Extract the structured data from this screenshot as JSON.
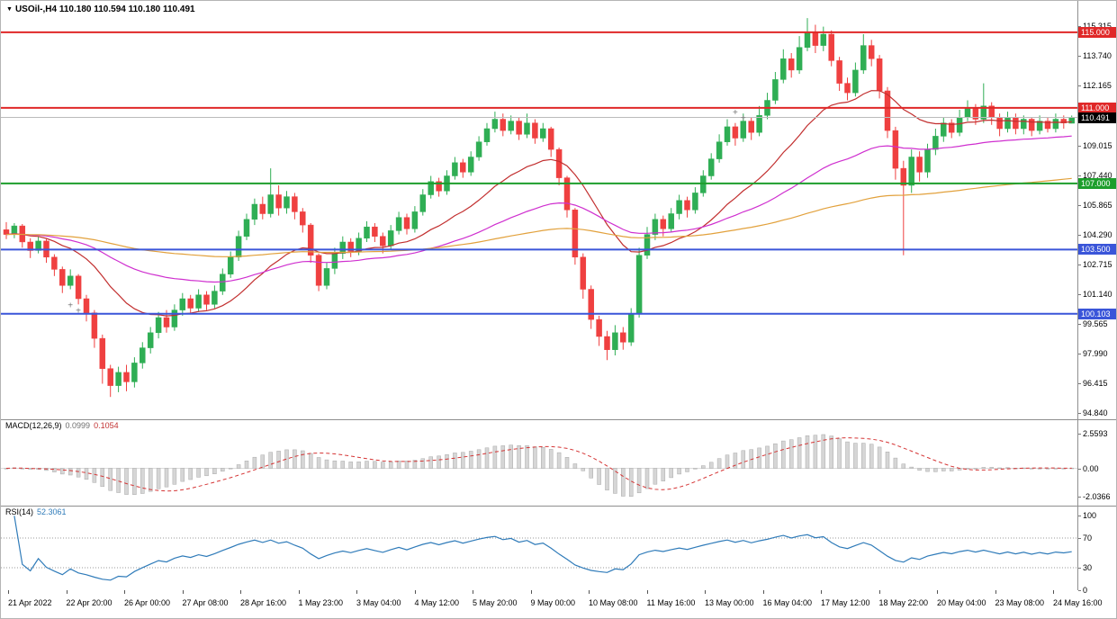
{
  "window": {
    "bg": "#ffffff",
    "border": "#b5b5b5"
  },
  "title": {
    "expander_icon": "▼",
    "symbol_period": "USOil-,H4",
    "ohlc": "110.180 110.594 110.180 110.491"
  },
  "colors": {
    "up": "#2fae54",
    "down": "#ef4040",
    "current_price_line": "#bbbbbb",
    "separator": "#8f8f8f",
    "axis_text": "#000000",
    "histogram": "#d6d6d6",
    "histogram_stroke": "#a8a8a8",
    "signal": "#d53535",
    "rsi_line": "#2f7bb9",
    "rsi_level_dotted": "#9a9a9a",
    "macd_zero_line": "#dcdcdc",
    "marker": "#777777"
  },
  "chart_data": {
    "type": "candlestick",
    "symbol": "USOil-",
    "timeframe": "H4",
    "bars_order": "oldest_to_newest",
    "ohlc_order": "[open,high,low,close]",
    "candles": [
      [
        104.55,
        104.95,
        104.05,
        104.3
      ],
      [
        104.3,
        104.9,
        104.1,
        104.75
      ],
      [
        104.75,
        104.85,
        103.6,
        103.9
      ],
      [
        103.9,
        104.1,
        103.05,
        103.45
      ],
      [
        103.45,
        104.2,
        103.3,
        103.95
      ],
      [
        103.95,
        104.05,
        102.8,
        103.1
      ],
      [
        103.1,
        103.25,
        102.1,
        102.45
      ],
      [
        102.45,
        102.6,
        101.2,
        101.6
      ],
      [
        101.6,
        102.45,
        101.4,
        102.1
      ],
      [
        102.1,
        102.2,
        100.6,
        100.9
      ],
      [
        100.9,
        101.1,
        99.7,
        100.15
      ],
      [
        100.15,
        100.3,
        98.3,
        98.8
      ],
      [
        98.8,
        99.0,
        96.4,
        97.2
      ],
      [
        97.2,
        97.4,
        95.7,
        96.3
      ],
      [
        96.3,
        97.3,
        95.95,
        97.0
      ],
      [
        97.0,
        97.4,
        96.0,
        96.5
      ],
      [
        96.5,
        97.8,
        96.2,
        97.5
      ],
      [
        97.5,
        98.6,
        97.2,
        98.3
      ],
      [
        98.3,
        99.4,
        98.0,
        99.1
      ],
      [
        99.1,
        100.2,
        98.8,
        99.9
      ],
      [
        99.9,
        100.3,
        99.1,
        99.4
      ],
      [
        99.4,
        100.6,
        99.2,
        100.3
      ],
      [
        100.3,
        101.2,
        100.0,
        100.9
      ],
      [
        100.9,
        101.1,
        100.1,
        100.4
      ],
      [
        100.4,
        101.4,
        100.2,
        101.1
      ],
      [
        101.1,
        101.3,
        100.3,
        100.6
      ],
      [
        100.6,
        101.6,
        100.4,
        101.3
      ],
      [
        101.3,
        102.5,
        101.1,
        102.2
      ],
      [
        102.2,
        103.4,
        102.0,
        103.1
      ],
      [
        103.1,
        104.5,
        102.9,
        104.2
      ],
      [
        104.2,
        105.4,
        104.0,
        105.1
      ],
      [
        105.1,
        106.2,
        104.8,
        105.9
      ],
      [
        105.9,
        106.3,
        105.1,
        105.4
      ],
      [
        105.4,
        107.8,
        105.2,
        106.4
      ],
      [
        106.4,
        106.9,
        105.3,
        105.7
      ],
      [
        105.7,
        106.6,
        105.4,
        106.3
      ],
      [
        106.3,
        106.5,
        105.1,
        105.5
      ],
      [
        105.5,
        105.7,
        104.4,
        104.8
      ],
      [
        104.8,
        104.9,
        102.8,
        103.2
      ],
      [
        103.2,
        103.3,
        101.3,
        101.6
      ],
      [
        101.6,
        102.8,
        101.4,
        102.5
      ],
      [
        102.5,
        103.6,
        102.2,
        103.3
      ],
      [
        103.3,
        104.2,
        103.0,
        103.9
      ],
      [
        103.9,
        104.1,
        103.1,
        103.4
      ],
      [
        103.4,
        104.4,
        103.2,
        104.1
      ],
      [
        104.1,
        105.0,
        103.9,
        104.7
      ],
      [
        104.7,
        104.9,
        103.9,
        104.2
      ],
      [
        104.2,
        104.4,
        103.3,
        103.7
      ],
      [
        103.7,
        104.8,
        103.5,
        104.5
      ],
      [
        104.5,
        105.5,
        104.3,
        105.2
      ],
      [
        105.2,
        105.4,
        104.3,
        104.6
      ],
      [
        104.6,
        105.8,
        104.4,
        105.5
      ],
      [
        105.5,
        106.7,
        105.3,
        106.4
      ],
      [
        106.4,
        107.4,
        106.2,
        107.1
      ],
      [
        107.1,
        107.3,
        106.3,
        106.6
      ],
      [
        106.6,
        107.7,
        106.4,
        107.4
      ],
      [
        107.4,
        108.4,
        107.2,
        108.1
      ],
      [
        108.1,
        108.3,
        107.3,
        107.6
      ],
      [
        107.6,
        108.7,
        107.4,
        108.4
      ],
      [
        108.4,
        109.5,
        108.2,
        109.2
      ],
      [
        109.2,
        110.2,
        109.0,
        109.9
      ],
      [
        109.9,
        110.8,
        109.7,
        110.4
      ],
      [
        110.4,
        110.7,
        109.5,
        109.8
      ],
      [
        109.8,
        110.6,
        109.6,
        110.3
      ],
      [
        110.3,
        110.5,
        109.3,
        109.6
      ],
      [
        109.6,
        110.7,
        109.4,
        110.2
      ],
      [
        110.2,
        110.4,
        109.1,
        109.4
      ],
      [
        109.4,
        110.2,
        109.2,
        109.9
      ],
      [
        109.9,
        110.0,
        108.4,
        108.8
      ],
      [
        108.8,
        108.9,
        106.9,
        107.3
      ],
      [
        107.3,
        107.4,
        105.2,
        105.6
      ],
      [
        105.6,
        105.7,
        102.7,
        103.1
      ],
      [
        103.1,
        103.3,
        100.9,
        101.4
      ],
      [
        101.4,
        101.6,
        99.3,
        99.8
      ],
      [
        99.8,
        100.0,
        98.4,
        98.9
      ],
      [
        98.9,
        99.2,
        97.65,
        98.2
      ],
      [
        98.2,
        99.5,
        97.9,
        99.1
      ],
      [
        99.1,
        99.4,
        98.2,
        98.6
      ],
      [
        98.6,
        100.4,
        98.4,
        100.1
      ],
      [
        100.1,
        103.6,
        99.9,
        103.2
      ],
      [
        103.2,
        104.7,
        103.0,
        104.3
      ],
      [
        104.3,
        105.4,
        104.0,
        105.1
      ],
      [
        105.1,
        105.3,
        104.2,
        104.6
      ],
      [
        104.6,
        105.7,
        104.4,
        105.4
      ],
      [
        105.4,
        106.4,
        105.1,
        106.1
      ],
      [
        106.1,
        106.3,
        105.2,
        105.6
      ],
      [
        105.6,
        106.8,
        105.4,
        106.5
      ],
      [
        106.5,
        107.7,
        106.3,
        107.4
      ],
      [
        107.4,
        108.6,
        107.2,
        108.3
      ],
      [
        108.3,
        109.6,
        108.1,
        109.2
      ],
      [
        109.2,
        110.4,
        109.0,
        110.0
      ],
      [
        110.0,
        110.2,
        109.0,
        109.4
      ],
      [
        109.4,
        110.7,
        109.2,
        110.3
      ],
      [
        110.3,
        110.5,
        109.3,
        109.7
      ],
      [
        109.7,
        111.1,
        109.5,
        110.6
      ],
      [
        110.6,
        111.8,
        110.4,
        111.4
      ],
      [
        111.4,
        112.9,
        111.2,
        112.5
      ],
      [
        112.5,
        114.1,
        112.3,
        113.6
      ],
      [
        113.6,
        113.9,
        112.6,
        113.0
      ],
      [
        113.0,
        114.8,
        112.8,
        114.2
      ],
      [
        114.2,
        115.75,
        114.0,
        115.0
      ],
      [
        115.0,
        115.4,
        113.9,
        114.3
      ],
      [
        114.3,
        115.3,
        114.0,
        114.9
      ],
      [
        114.9,
        115.1,
        113.2,
        113.5
      ],
      [
        113.5,
        113.7,
        111.9,
        112.3
      ],
      [
        112.3,
        112.6,
        111.4,
        111.8
      ],
      [
        111.8,
        113.4,
        111.6,
        113.0
      ],
      [
        113.0,
        114.9,
        112.8,
        114.3
      ],
      [
        114.3,
        114.6,
        113.2,
        113.6
      ],
      [
        113.6,
        113.8,
        111.5,
        111.9
      ],
      [
        111.9,
        112.1,
        109.4,
        109.8
      ],
      [
        109.8,
        110.0,
        107.2,
        107.8
      ],
      [
        107.8,
        108.2,
        103.2,
        106.9
      ],
      [
        106.9,
        108.8,
        106.5,
        108.4
      ],
      [
        108.4,
        108.7,
        107.1,
        107.6
      ],
      [
        107.6,
        109.1,
        107.3,
        108.8
      ],
      [
        108.8,
        109.9,
        108.5,
        109.5
      ],
      [
        109.5,
        110.5,
        109.2,
        110.2
      ],
      [
        110.2,
        110.4,
        109.4,
        109.7
      ],
      [
        109.7,
        110.9,
        109.5,
        110.5
      ],
      [
        110.5,
        111.4,
        110.3,
        111.0
      ],
      [
        111.0,
        111.2,
        110.1,
        110.4
      ],
      [
        110.4,
        112.3,
        110.2,
        111.1
      ],
      [
        111.1,
        111.3,
        110.1,
        110.5
      ],
      [
        110.5,
        110.7,
        109.5,
        109.9
      ],
      [
        109.9,
        110.8,
        109.7,
        110.5
      ],
      [
        110.5,
        110.7,
        109.6,
        109.9
      ],
      [
        109.9,
        110.6,
        109.6,
        110.4
      ],
      [
        110.4,
        110.5,
        109.5,
        109.8
      ],
      [
        109.8,
        110.6,
        109.6,
        110.3
      ],
      [
        110.3,
        110.5,
        109.7,
        109.9
      ],
      [
        109.9,
        110.7,
        109.7,
        110.4
      ],
      [
        110.4,
        110.6,
        109.9,
        110.2
      ],
      [
        110.18,
        110.594,
        110.18,
        110.491
      ]
    ],
    "levels": [
      {
        "value": 115.0,
        "label": "115.000",
        "color": "#e02828"
      },
      {
        "value": 111.0,
        "label": "111.000",
        "color": "#e02828"
      },
      {
        "value": 107.0,
        "label": "107.000",
        "color": "#1d9e2c"
      },
      {
        "value": 103.5,
        "label": "103.500",
        "color": "#3a55d9"
      },
      {
        "value": 100.103,
        "label": "100.103",
        "color": "#3a55d9"
      }
    ],
    "current_price": {
      "value": 110.491,
      "label": "110.491",
      "badge_bg": "#000000"
    },
    "moving_averages": [
      {
        "name": "ma-fast",
        "method": "ema",
        "period": 20,
        "color": "#c22f2f"
      },
      {
        "name": "ma-mid",
        "method": "ema",
        "period": 55,
        "color": "#cf2fcf"
      },
      {
        "name": "ma-slow",
        "method": "ema",
        "period": 150,
        "color": "#e2a13c"
      }
    ],
    "price_axis": {
      "labels": [
        "115.315",
        "113.740",
        "112.165",
        "110.590",
        "109.015",
        "107.440",
        "105.865",
        "104.290",
        "102.715",
        "101.140",
        "99.565",
        "97.990",
        "96.415",
        "94.840"
      ],
      "visible_min": 94.84,
      "visible_max": 116.66
    },
    "indicators": [
      {
        "name": "MACD",
        "label": "MACD(12,26,9)",
        "params": [
          12,
          26,
          9
        ],
        "values": [
          "0.0999",
          "0.1054"
        ],
        "axis_labels": [
          "2.5593",
          "0.00",
          "-2.0366"
        ],
        "range": [
          -2.0366,
          2.5593
        ]
      },
      {
        "name": "RSI",
        "label": "RSI(14)",
        "params": [
          14
        ],
        "value": "52.3061",
        "axis_labels": [
          "100",
          "70",
          "30",
          "0"
        ],
        "levels": [
          70,
          30
        ],
        "range": [
          0,
          100
        ]
      }
    ],
    "time_axis": {
      "labels": [
        "21 Apr 2022",
        "22 Apr 20:00",
        "26 Apr 00:00",
        "27 Apr 08:00",
        "28 Apr 16:00",
        "1 May 23:00",
        "3 May 04:00",
        "4 May 12:00",
        "5 May 20:00",
        "9 May 00:00",
        "10 May 08:00",
        "11 May 16:00",
        "13 May 00:00",
        "16 May 04:00",
        "17 May 12:00",
        "18 May 22:00",
        "20 May 04:00",
        "23 May 08:00",
        "24 May 16:00"
      ]
    },
    "plus_markers": [
      {
        "index": 8,
        "price": 100.55
      },
      {
        "index": 9,
        "price": 100.25
      },
      {
        "index": 91,
        "price": 110.75
      },
      {
        "index": 92,
        "price": 110.45
      }
    ]
  }
}
